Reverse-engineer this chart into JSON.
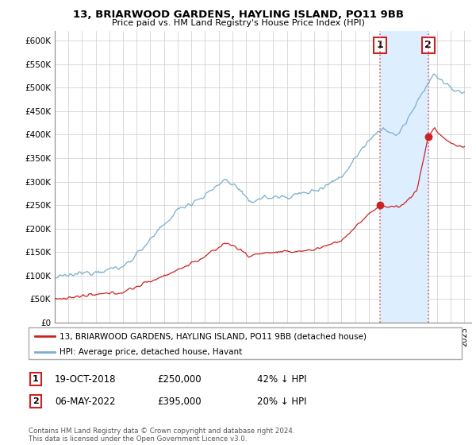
{
  "title": "13, BRIARWOOD GARDENS, HAYLING ISLAND, PO11 9BB",
  "subtitle": "Price paid vs. HM Land Registry's House Price Index (HPI)",
  "legend_line1": "13, BRIARWOOD GARDENS, HAYLING ISLAND, PO11 9BB (detached house)",
  "legend_line2": "HPI: Average price, detached house, Havant",
  "event1_label": "1",
  "event1_date": "19-OCT-2018",
  "event1_price": "£250,000",
  "event1_pct": "42% ↓ HPI",
  "event1_year": 2018.8,
  "event1_value": 250000,
  "event2_label": "2",
  "event2_date": "06-MAY-2022",
  "event2_price": "£395,000",
  "event2_pct": "20% ↓ HPI",
  "event2_year": 2022.35,
  "event2_value": 395000,
  "footer1": "Contains HM Land Registry data © Crown copyright and database right 2024.",
  "footer2": "This data is licensed under the Open Government Licence v3.0.",
  "hpi_color": "#7aadcf",
  "price_color": "#cc2222",
  "marker_color": "#cc2222",
  "bg_color": "#ffffff",
  "grid_color": "#cccccc",
  "event_line_color": "#e06060",
  "shade_color": "#ddeeff",
  "ylim_max": 620000,
  "ylim_min": 0,
  "xlim_min": 1995,
  "xlim_max": 2025.5
}
